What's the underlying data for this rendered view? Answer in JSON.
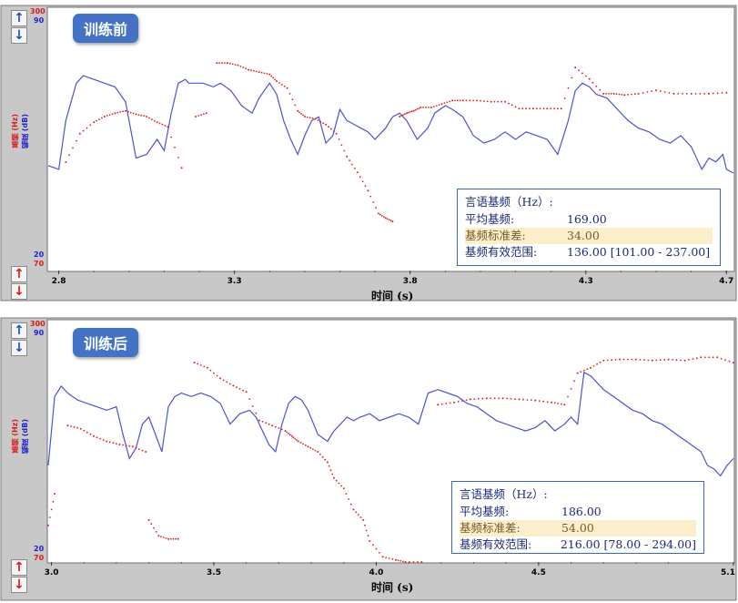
{
  "panels": [
    {
      "badge": "训练前",
      "scale_top_red": "300",
      "scale_top_blue": "90",
      "scale_bottom_blue": "20",
      "scale_bottom_red": "70",
      "ylabel_red": "基频 (Hz)",
      "ylabel_blue": "幅度 (dB)",
      "xlabel": "时间 (s)",
      "stats": {
        "title": "言语基频（Hz）:",
        "mean_label": "平均基频:",
        "mean_value": "169.00",
        "std_label": "基频标准差:",
        "std_value": "34.00",
        "range_label": "基频有效范围:",
        "range_value": "136.00 [101.00 - 237.00]"
      }
    },
    {
      "badge": "训练后",
      "scale_top_red": "300",
      "scale_top_blue": "90",
      "scale_bottom_blue": "20",
      "scale_bottom_red": "70",
      "ylabel_red": "基频 (Hz)",
      "ylabel_blue": "幅度 (dB)",
      "xlabel": "时间 (s)",
      "stats": {
        "title": "言语基频（Hz）:",
        "mean_label": "平均基频:",
        "mean_value": "186.00",
        "std_label": "基频标准差:",
        "std_value": "54.00",
        "range_label": "基频有效范围:",
        "range_value": "216.00 [78.00 - 294.00]"
      }
    }
  ],
  "colors": {
    "amplitude": "#4a52d6",
    "pitch": "#e02020",
    "voiced": "#2fae2f",
    "scale_red": "#d81b1b",
    "scale_blue": "#2222cc"
  },
  "chart_data": [
    {
      "type": "line",
      "xlabel": "时间 (s)",
      "xlim": [
        2.77,
        4.72
      ],
      "x_ticks": [
        "2.8",
        "3.3",
        "3.8",
        "4.3",
        "4.7"
      ],
      "x_tick_values": [
        2.8,
        3.3,
        3.8,
        4.3,
        4.7
      ],
      "amplitude_ylim": [
        20,
        90
      ],
      "pitch_ylim": [
        70,
        300
      ],
      "series": [
        {
          "name": "幅度 (dB)",
          "x": [
            2.77,
            2.8,
            2.82,
            2.85,
            2.87,
            2.9,
            2.93,
            2.96,
            2.99,
            3.02,
            3.05,
            3.08,
            3.1,
            3.12,
            3.14,
            3.16,
            3.17,
            3.19,
            3.21,
            3.24,
            3.26,
            3.29,
            3.32,
            3.35,
            3.37,
            3.4,
            3.42,
            3.44,
            3.46,
            3.48,
            3.5,
            3.52,
            3.54,
            3.56,
            3.58,
            3.6,
            3.62,
            3.64,
            3.66,
            3.68,
            3.7,
            3.73,
            3.75,
            3.77,
            3.79,
            3.82,
            3.85,
            3.87,
            3.9,
            3.92,
            3.95,
            3.98,
            4.01,
            4.04,
            4.07,
            4.1,
            4.13,
            4.16,
            4.19,
            4.22,
            4.25,
            4.27,
            4.29,
            4.31,
            4.33,
            4.36,
            4.39,
            4.42,
            4.45,
            4.48,
            4.51,
            4.54,
            4.57,
            4.6,
            4.63,
            4.65,
            4.67,
            4.69,
            4.7,
            4.72
          ],
          "values": [
            48,
            47,
            60,
            70,
            72,
            71,
            70,
            69,
            65,
            50,
            51,
            55,
            52,
            62,
            70,
            71,
            70,
            70,
            70,
            69,
            70,
            68,
            64,
            62,
            66,
            70,
            67,
            60,
            55,
            51,
            56,
            60,
            61,
            54,
            56,
            63,
            60,
            59,
            58,
            57,
            55,
            58,
            61,
            62,
            60,
            55,
            58,
            62,
            64,
            63,
            61,
            56,
            54,
            55,
            57,
            55,
            57,
            56,
            55,
            51,
            60,
            68,
            70,
            69,
            67,
            66,
            63,
            60,
            58,
            57,
            55,
            54,
            56,
            53,
            47,
            50,
            49,
            51,
            47,
            46
          ]
        },
        {
          "name": "基频 (Hz)",
          "x": [
            2.82,
            2.86,
            2.9,
            2.93,
            2.96,
            2.99,
            3.02,
            3.05,
            3.08,
            3.11,
            3.15,
            3.19,
            3.22,
            3.25,
            3.28,
            3.31,
            3.34,
            3.37,
            3.4,
            3.42,
            3.45,
            3.48,
            3.5,
            3.53,
            3.56,
            3.59,
            3.62,
            3.65,
            3.68,
            3.71,
            3.73,
            3.75,
            3.77,
            3.79,
            3.81,
            3.83,
            3.86,
            3.89,
            3.92,
            3.95,
            3.99,
            4.03,
            4.07,
            4.11,
            4.15,
            4.19,
            4.23,
            4.27,
            4.31,
            4.35,
            4.38,
            4.41,
            4.45,
            4.5,
            4.55,
            4.6,
            4.65,
            4.7
          ],
          "values": [
            165,
            190,
            200,
            205,
            208,
            210,
            207,
            205,
            200,
            196,
            160,
            205,
            208,
            252,
            252,
            250,
            246,
            244,
            242,
            236,
            230,
            210,
            205,
            203,
            198,
            190,
            170,
            156,
            140,
            120,
            116,
            113,
            205,
            208,
            210,
            213,
            213,
            216,
            219,
            219,
            219,
            218,
            218,
            212,
            212,
            212,
            212,
            248,
            238,
            225,
            225,
            224,
            225,
            228,
            225,
            225,
            225,
            226
          ]
        }
      ]
    },
    {
      "type": "line",
      "xlabel": "时间 (s)",
      "xlim": [
        2.99,
        5.1
      ],
      "x_ticks": [
        "3.0",
        "3.5",
        "4.0",
        "4.5",
        "5.1"
      ],
      "x_tick_values": [
        3.0,
        3.5,
        4.0,
        4.5,
        5.1
      ],
      "amplitude_ylim": [
        20,
        90
      ],
      "pitch_ylim": [
        70,
        300
      ],
      "series": [
        {
          "name": "幅度 (dB)",
          "x": [
            2.99,
            3.01,
            3.03,
            3.05,
            3.08,
            3.11,
            3.14,
            3.17,
            3.2,
            3.22,
            3.24,
            3.26,
            3.28,
            3.3,
            3.32,
            3.34,
            3.36,
            3.38,
            3.4,
            3.43,
            3.46,
            3.49,
            3.52,
            3.55,
            3.58,
            3.61,
            3.63,
            3.65,
            3.67,
            3.69,
            3.71,
            3.73,
            3.75,
            3.77,
            3.79,
            3.82,
            3.85,
            3.87,
            3.89,
            3.91,
            3.93,
            3.95,
            3.98,
            4.01,
            4.04,
            4.07,
            4.1,
            4.13,
            4.16,
            4.19,
            4.22,
            4.25,
            4.28,
            4.31,
            4.34,
            4.37,
            4.4,
            4.43,
            4.46,
            4.49,
            4.52,
            4.55,
            4.58,
            4.6,
            4.62,
            4.64,
            4.66,
            4.68,
            4.7,
            4.73,
            4.76,
            4.79,
            4.82,
            4.85,
            4.88,
            4.91,
            4.94,
            4.97,
            5.0,
            5.02,
            5.04,
            5.06,
            5.08,
            5.1
          ],
          "values": [
            48,
            68,
            71,
            69,
            67,
            66,
            65,
            64,
            65,
            57,
            50,
            53,
            60,
            62,
            57,
            52,
            65,
            68,
            69,
            68,
            69,
            68,
            66,
            60,
            63,
            64,
            62,
            58,
            54,
            52,
            60,
            66,
            68,
            67,
            64,
            57,
            55,
            58,
            60,
            62,
            61,
            62,
            63,
            61,
            62,
            63,
            62,
            60,
            69,
            70,
            69,
            68,
            66,
            65,
            63,
            61,
            60,
            59,
            58,
            59,
            61,
            58,
            60,
            62,
            60,
            75,
            74,
            72,
            70,
            68,
            66,
            64,
            63,
            61,
            60,
            58,
            56,
            54,
            52,
            48,
            47,
            45,
            48,
            50
          ]
        },
        {
          "name": "基频 (Hz)",
          "x": [
            2.99,
            3.01,
            3.05,
            3.09,
            3.13,
            3.17,
            3.21,
            3.25,
            3.29,
            3.3,
            3.33,
            3.36,
            3.39,
            3.44,
            3.48,
            3.52,
            3.56,
            3.6,
            3.64,
            3.68,
            3.72,
            3.74,
            3.76,
            3.79,
            3.82,
            3.85,
            3.87,
            3.9,
            3.93,
            3.96,
            3.98,
            4.02,
            4.06,
            4.09,
            4.14,
            4.19,
            4.24,
            4.29,
            4.34,
            4.39,
            4.44,
            4.49,
            4.54,
            4.58,
            4.62,
            4.66,
            4.7,
            4.75,
            4.8,
            4.85,
            4.9,
            4.95,
            5.0,
            5.05,
            5.1
          ],
          "values": [
            105,
            135,
            200,
            197,
            190,
            185,
            182,
            180,
            175,
            110,
            95,
            92,
            92,
            260,
            255,
            245,
            238,
            232,
            205,
            200,
            195,
            190,
            185,
            180,
            175,
            165,
            150,
            140,
            120,
            110,
            90,
            75,
            72,
            70,
            70,
            220,
            222,
            225,
            226,
            226,
            225,
            224,
            222,
            220,
            250,
            255,
            262,
            263,
            263,
            262,
            263,
            262,
            265,
            265,
            260
          ]
        }
      ]
    }
  ]
}
